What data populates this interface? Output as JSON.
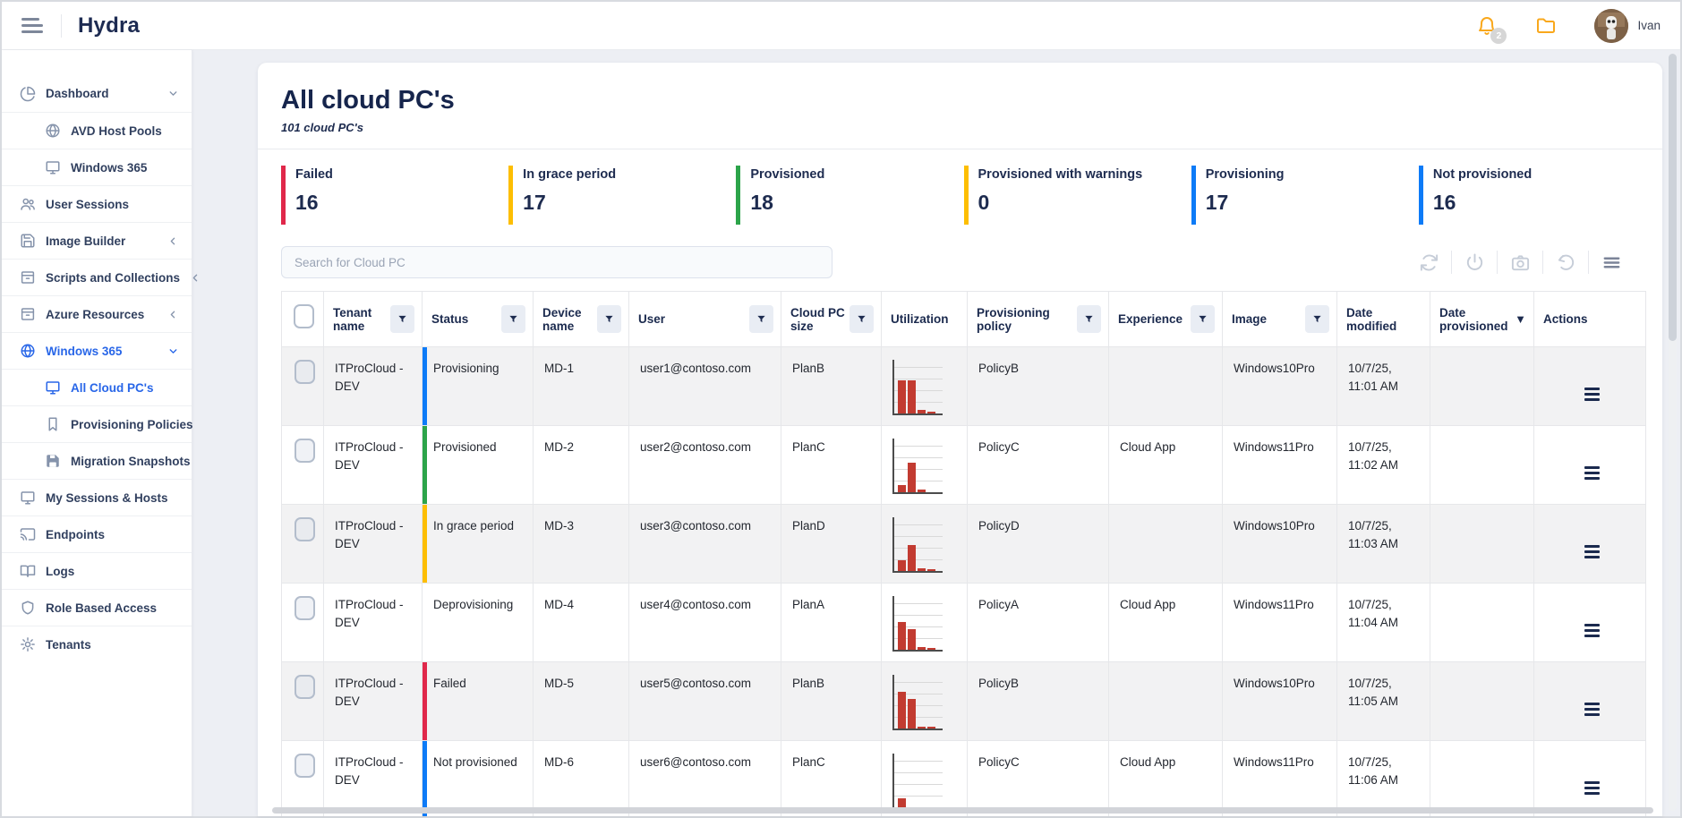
{
  "brand": "Hydra",
  "topbar": {
    "username": "Ivan",
    "notification_count": "2"
  },
  "sidebar": {
    "items": [
      {
        "label": "Dashboard"
      },
      {
        "label": "AVD Host Pools"
      },
      {
        "label": "Windows 365"
      },
      {
        "label": "User Sessions"
      },
      {
        "label": "Image Builder"
      },
      {
        "label": "Scripts and Collections"
      },
      {
        "label": "Azure Resources"
      },
      {
        "label": "Windows 365"
      },
      {
        "label": "All Cloud PC's"
      },
      {
        "label": "Provisioning Policies"
      },
      {
        "label": "Migration Snapshots"
      },
      {
        "label": "My Sessions & Hosts"
      },
      {
        "label": "Endpoints"
      },
      {
        "label": "Logs"
      },
      {
        "label": "Role Based Access"
      },
      {
        "label": "Tenants"
      }
    ]
  },
  "page": {
    "title": "All cloud PC's",
    "subtitle": "101 cloud PC's"
  },
  "status_cards": [
    {
      "label": "Failed",
      "value": "16",
      "color": "#e0284a"
    },
    {
      "label": "In grace period",
      "value": "17",
      "color": "#fdbe02"
    },
    {
      "label": "Provisioned",
      "value": "18",
      "color": "#2ca44a"
    },
    {
      "label": "Provisioned with warnings",
      "value": "0",
      "color": "#fdbe02"
    },
    {
      "label": "Provisioning",
      "value": "17",
      "color": "#0d7bf7"
    },
    {
      "label": "Not provisioned",
      "value": "16",
      "color": "#0d7bf7"
    }
  ],
  "search": {
    "placeholder": "Search for Cloud PC"
  },
  "table": {
    "columns": [
      {
        "label": "Tenant name",
        "control": "filter"
      },
      {
        "label": "Status",
        "control": "filter"
      },
      {
        "label": "Device name",
        "control": "filter"
      },
      {
        "label": "User",
        "control": "filter"
      },
      {
        "label": "Cloud PC size",
        "control": "filter"
      },
      {
        "label": "Utilization",
        "control": "none"
      },
      {
        "label": "Provisioning policy",
        "control": "filter"
      },
      {
        "label": "Experience",
        "control": "filter"
      },
      {
        "label": "Image",
        "control": "filter"
      },
      {
        "label": "Date modified",
        "control": "none"
      },
      {
        "label": "Date provisioned",
        "control": "sort"
      },
      {
        "label": "Actions",
        "control": "none"
      }
    ],
    "rows": [
      {
        "tenant": "ITProCloud - DEV",
        "status": "Provisioning",
        "status_color": "#0d7bf7",
        "device": "MD-1",
        "user": "user1@contoso.com",
        "size": "PlanB",
        "utilization": [
          62,
          62,
          6,
          3
        ],
        "policy": "PolicyB",
        "experience": "",
        "image": "Windows10Pro",
        "date_modified": "10/7/25, 11:01 AM",
        "date_provisioned": ""
      },
      {
        "tenant": "ITProCloud - DEV",
        "status": "Provisioned",
        "status_color": "#2ca44a",
        "device": "MD-2",
        "user": "user2@contoso.com",
        "size": "PlanC",
        "utilization": [
          14,
          55,
          5
        ],
        "policy": "PolicyC",
        "experience": "Cloud App",
        "image": "Windows11Pro",
        "date_modified": "10/7/25, 11:02 AM",
        "date_provisioned": ""
      },
      {
        "tenant": "ITProCloud - DEV",
        "status": "In grace period",
        "status_color": "#fdbe02",
        "device": "MD-3",
        "user": "user3@contoso.com",
        "size": "PlanD",
        "utilization": [
          20,
          48,
          5,
          4
        ],
        "policy": "PolicyD",
        "experience": "",
        "image": "Windows10Pro",
        "date_modified": "10/7/25, 11:03 AM",
        "date_provisioned": ""
      },
      {
        "tenant": "ITProCloud - DEV",
        "status": "Deprovisioning",
        "status_color": "",
        "device": "MD-4",
        "user": "user4@contoso.com",
        "size": "PlanA",
        "utilization": [
          52,
          38,
          5,
          4
        ],
        "policy": "PolicyA",
        "experience": "Cloud App",
        "image": "Windows11Pro",
        "date_modified": "10/7/25, 11:04 AM",
        "date_provisioned": ""
      },
      {
        "tenant": "ITProCloud - DEV",
        "status": "Failed",
        "status_color": "#e0284a",
        "device": "MD-5",
        "user": "user5@contoso.com",
        "size": "PlanB",
        "utilization": [
          68,
          55,
          4,
          3
        ],
        "policy": "PolicyB",
        "experience": "",
        "image": "Windows10Pro",
        "date_modified": "10/7/25, 11:05 AM",
        "date_provisioned": ""
      },
      {
        "tenant": "ITProCloud - DEV",
        "status": "Not provisioned",
        "status_color": "#0d7bf7",
        "device": "MD-6",
        "user": "user6@contoso.com",
        "size": "PlanC",
        "utilization": [
          16
        ],
        "policy": "PolicyC",
        "experience": "Cloud App",
        "image": "Windows11Pro",
        "date_modified": "10/7/25, 11:06 AM",
        "date_provisioned": ""
      }
    ]
  }
}
